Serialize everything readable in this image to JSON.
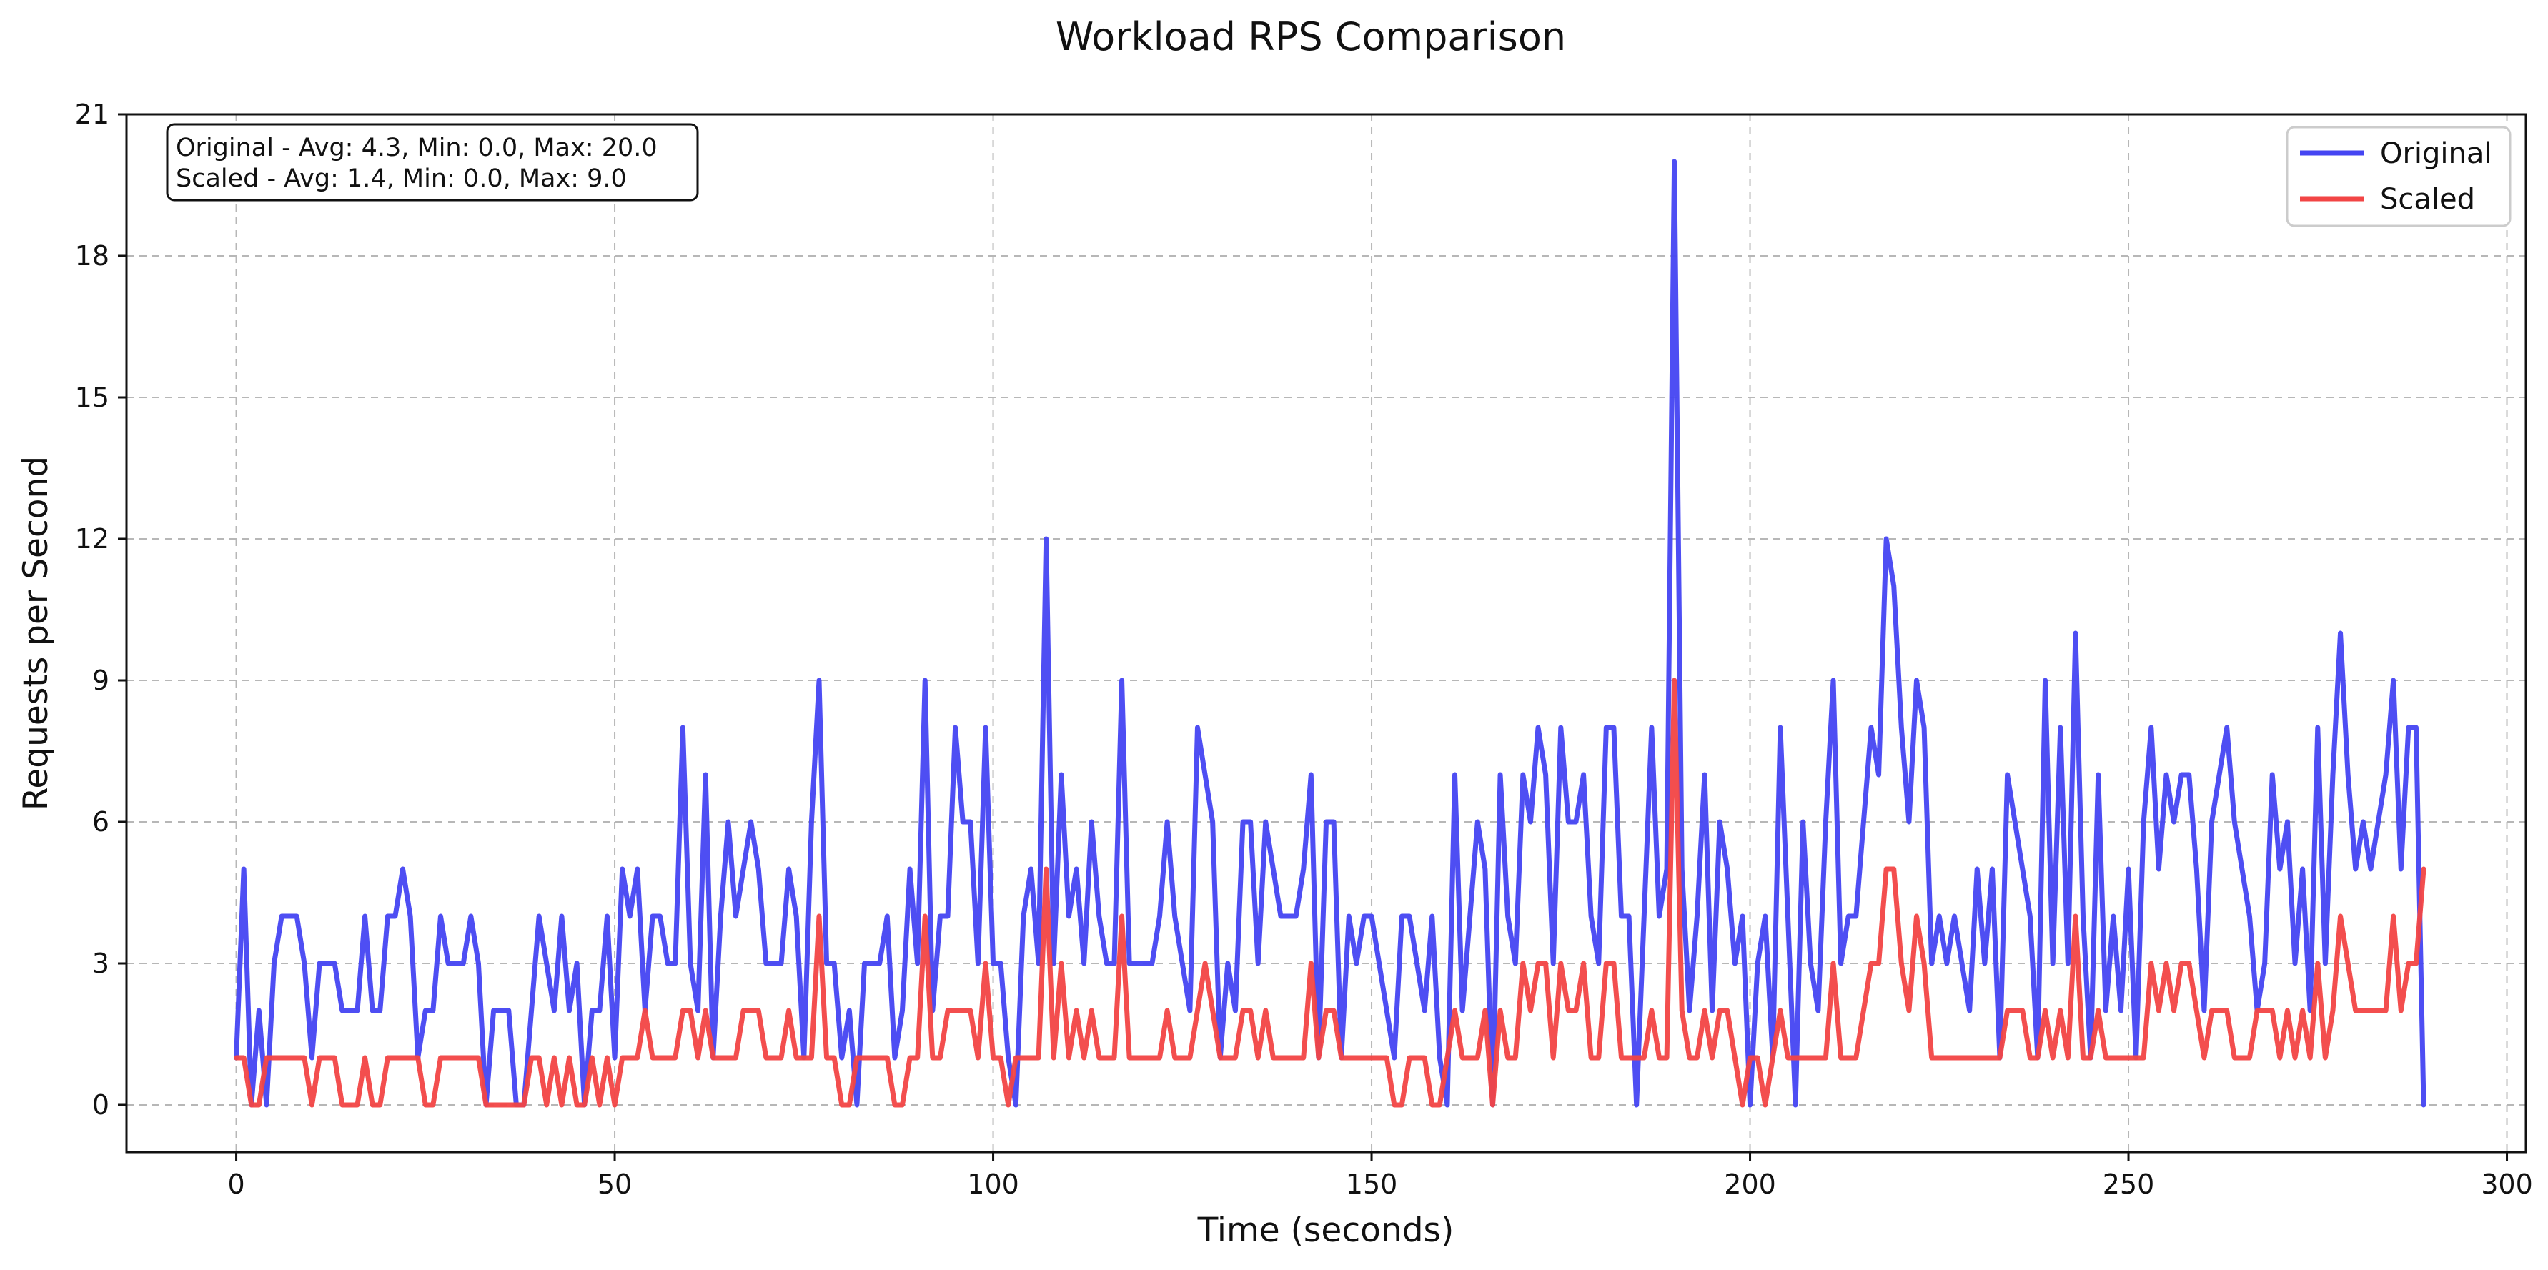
{
  "chart_data": {
    "type": "line",
    "title": "Workload RPS Comparison",
    "xlabel": "Time (seconds)",
    "ylabel": "Requests per Second",
    "xlim": [
      -14.5,
      302.5
    ],
    "ylim": [
      -1,
      21
    ],
    "xticks": [
      0,
      50,
      100,
      150,
      200,
      250,
      300
    ],
    "yticks": [
      0,
      3,
      6,
      9,
      12,
      15,
      18,
      21
    ],
    "grid": true,
    "legend_position": "top-right",
    "stats_lines": [
      "Original - Avg: 4.3, Min: 0.0, Max: 20.0",
      "Scaled - Avg: 1.4, Min: 0.0, Max: 9.0"
    ],
    "series": [
      {
        "name": "Original",
        "color": "#4545f2",
        "x_start": 0,
        "x_step": 1,
        "values": [
          1,
          5,
          0,
          2,
          0,
          3,
          4,
          4,
          4,
          3,
          1,
          3,
          3,
          3,
          2,
          2,
          2,
          4,
          2,
          2,
          4,
          4,
          5,
          4,
          1,
          2,
          2,
          4,
          3,
          3,
          3,
          4,
          3,
          0,
          2,
          2,
          2,
          0,
          0,
          2,
          4,
          3,
          2,
          4,
          2,
          3,
          0,
          2,
          2,
          4,
          1,
          5,
          4,
          5,
          2,
          4,
          4,
          3,
          3,
          8,
          3,
          2,
          7,
          1,
          4,
          6,
          4,
          5,
          6,
          5,
          3,
          3,
          3,
          5,
          4,
          1,
          6,
          9,
          3,
          3,
          1,
          2,
          0,
          3,
          3,
          3,
          4,
          1,
          2,
          5,
          3,
          9,
          2,
          4,
          4,
          8,
          6,
          6,
          3,
          8,
          3,
          3,
          1,
          0,
          4,
          5,
          3,
          12,
          3,
          7,
          4,
          5,
          3,
          6,
          4,
          3,
          3,
          9,
          3,
          3,
          3,
          3,
          4,
          6,
          4,
          3,
          2,
          8,
          7,
          6,
          1,
          3,
          2,
          6,
          6,
          3,
          6,
          5,
          4,
          4,
          4,
          5,
          7,
          1,
          6,
          6,
          1,
          4,
          3,
          4,
          4,
          3,
          2,
          1,
          4,
          4,
          3,
          2,
          4,
          1,
          0,
          7,
          2,
          4,
          6,
          5,
          0,
          7,
          4,
          3,
          7,
          6,
          8,
          7,
          3,
          8,
          6,
          6,
          7,
          4,
          3,
          8,
          8,
          4,
          4,
          0,
          4,
          8,
          4,
          5,
          20,
          5,
          2,
          4,
          7,
          2,
          6,
          5,
          3,
          4,
          0,
          3,
          4,
          1,
          8,
          4,
          0,
          6,
          3,
          2,
          6,
          9,
          3,
          4,
          4,
          6,
          8,
          7,
          12,
          11,
          8,
          6,
          9,
          8,
          3,
          4,
          3,
          4,
          3,
          2,
          5,
          3,
          5,
          1,
          7,
          6,
          5,
          4,
          1,
          9,
          3,
          8,
          3,
          10,
          4,
          1,
          7,
          2,
          4,
          2,
          5,
          1,
          6,
          8,
          5,
          7,
          6,
          7,
          7,
          5,
          2,
          6,
          7,
          8,
          6,
          5,
          4,
          2,
          3,
          7,
          5,
          6,
          3,
          5,
          2,
          8,
          3,
          7,
          10,
          7,
          5,
          6,
          5,
          6,
          7,
          9,
          5,
          8,
          8,
          0
        ]
      },
      {
        "name": "Scaled",
        "color": "#f24545",
        "x_start": 0,
        "x_step": 1,
        "values": [
          1,
          1,
          0,
          0,
          1,
          1,
          1,
          1,
          1,
          1,
          0,
          1,
          1,
          1,
          0,
          0,
          0,
          1,
          0,
          0,
          1,
          1,
          1,
          1,
          1,
          0,
          0,
          1,
          1,
          1,
          1,
          1,
          1,
          0,
          0,
          0,
          0,
          0,
          0,
          1,
          1,
          0,
          1,
          0,
          1,
          0,
          0,
          1,
          0,
          1,
          0,
          1,
          1,
          1,
          2,
          1,
          1,
          1,
          1,
          2,
          2,
          1,
          2,
          1,
          1,
          1,
          1,
          2,
          2,
          2,
          1,
          1,
          1,
          2,
          1,
          1,
          1,
          4,
          1,
          1,
          0,
          0,
          1,
          1,
          1,
          1,
          1,
          0,
          0,
          1,
          1,
          4,
          1,
          1,
          2,
          2,
          2,
          2,
          1,
          3,
          1,
          1,
          0,
          1,
          1,
          1,
          1,
          5,
          1,
          3,
          1,
          2,
          1,
          2,
          1,
          1,
          1,
          4,
          1,
          1,
          1,
          1,
          1,
          2,
          1,
          1,
          1,
          2,
          3,
          2,
          1,
          1,
          1,
          2,
          2,
          1,
          2,
          1,
          1,
          1,
          1,
          1,
          3,
          1,
          2,
          2,
          1,
          1,
          1,
          1,
          1,
          1,
          1,
          0,
          0,
          1,
          1,
          1,
          0,
          0,
          1,
          2,
          1,
          1,
          1,
          2,
          0,
          2,
          1,
          1,
          3,
          2,
          3,
          3,
          1,
          3,
          2,
          2,
          3,
          1,
          1,
          3,
          3,
          1,
          1,
          1,
          1,
          2,
          1,
          1,
          9,
          2,
          1,
          1,
          2,
          1,
          2,
          2,
          1,
          0,
          1,
          1,
          0,
          1,
          2,
          1,
          1,
          1,
          1,
          1,
          1,
          3,
          1,
          1,
          1,
          2,
          3,
          3,
          5,
          5,
          3,
          2,
          4,
          3,
          1,
          1,
          1,
          1,
          1,
          1,
          1,
          1,
          1,
          1,
          2,
          2,
          2,
          1,
          1,
          2,
          1,
          2,
          1,
          4,
          1,
          1,
          2,
          1,
          1,
          1,
          1,
          1,
          1,
          3,
          2,
          3,
          2,
          3,
          3,
          2,
          1,
          2,
          2,
          2,
          1,
          1,
          1,
          2,
          2,
          2,
          1,
          2,
          1,
          2,
          1,
          3,
          1,
          2,
          4,
          3,
          2,
          2,
          2,
          2,
          2,
          4,
          2,
          3,
          3,
          5
        ]
      }
    ]
  }
}
